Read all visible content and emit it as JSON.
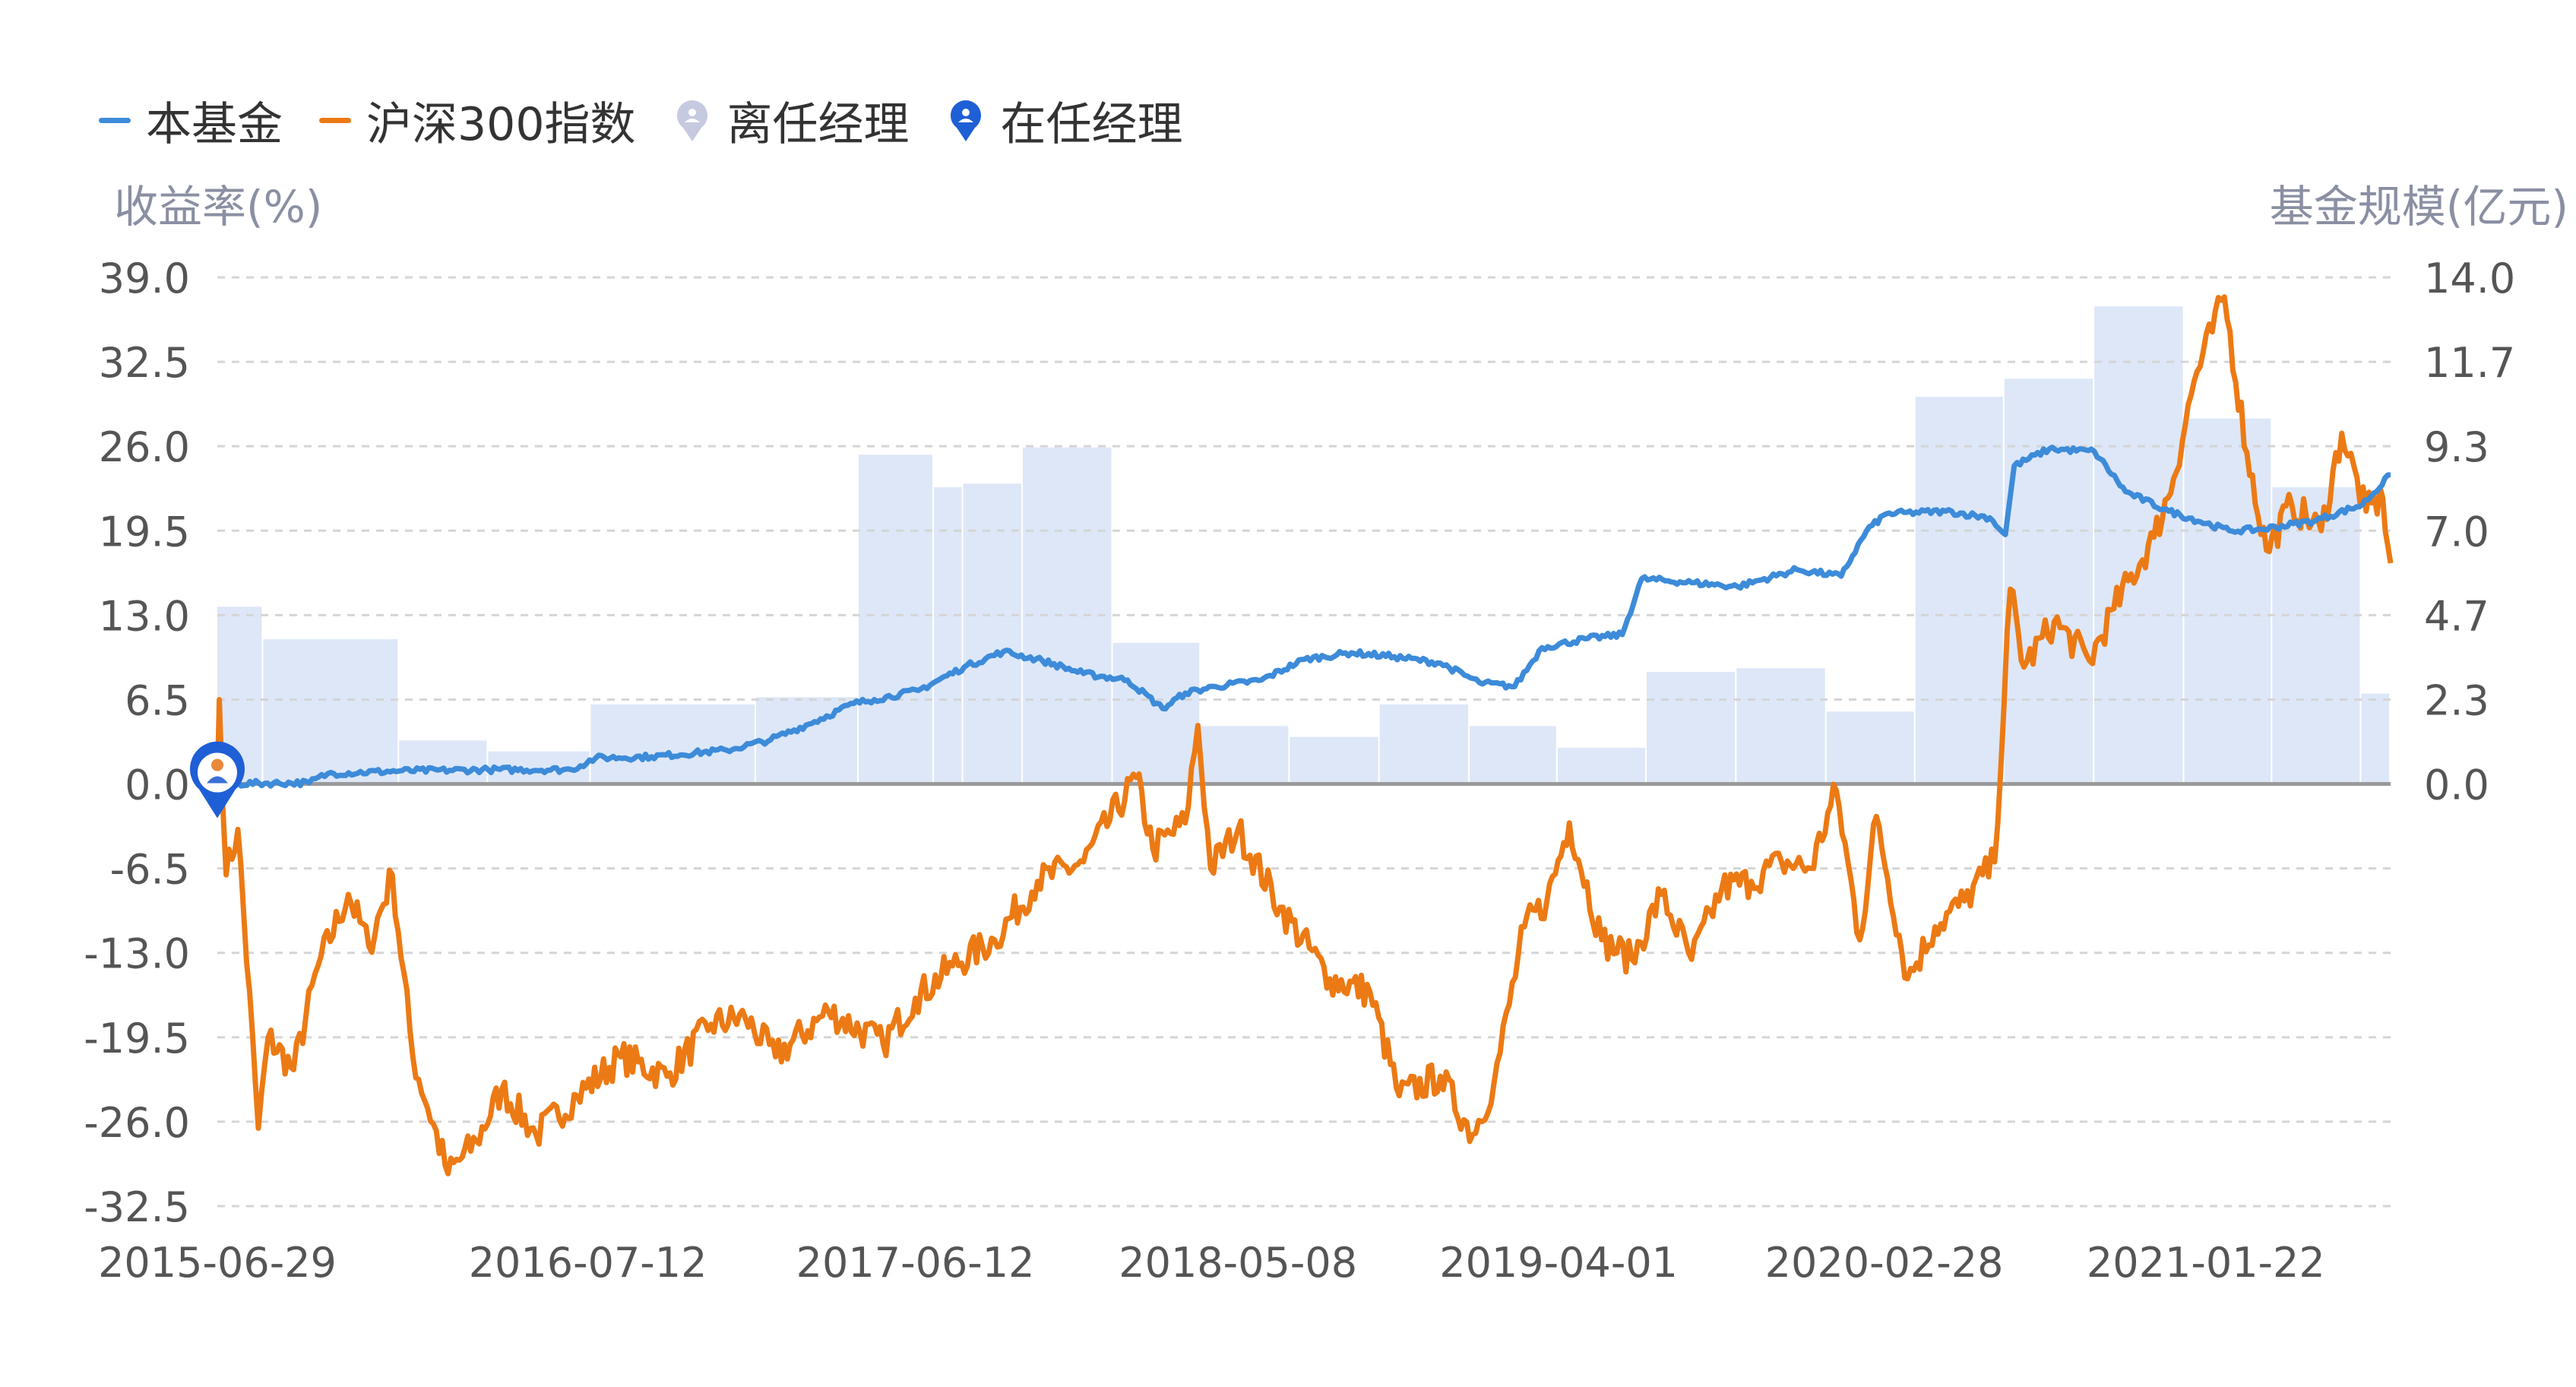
{
  "legend": {
    "fund": "本基金",
    "index": "沪深300指数",
    "former_manager": "离任经理",
    "current_manager": "在任经理"
  },
  "colors": {
    "fund": "#3d8bd9",
    "index": "#ec7a14",
    "scale_fill": "#dde7f8",
    "former_manager_icon": "#c5cae0",
    "current_manager_icon": "#1f5fd6",
    "grid": "#d5d5d5",
    "zero_line": "#9a9a9a",
    "axis_text": "#555555"
  },
  "chart_data": {
    "type": "line",
    "left_axis_title": "收益率(%)",
    "right_axis_title": "基金规模(亿元)",
    "left_ticks": [
      "39.0",
      "32.5",
      "26.0",
      "19.5",
      "13.0",
      "6.5",
      "0.0",
      "-6.5",
      "-13.0",
      "-19.5",
      "-26.0",
      "-32.5"
    ],
    "right_ticks": [
      "14.0",
      "11.7",
      "9.3",
      "7.0",
      "4.7",
      "2.3",
      "0.0"
    ],
    "x_ticks": [
      "2015-06-29",
      "2016-07-12",
      "2017-06-12",
      "2018-05-08",
      "2019-04-01",
      "2020-02-28",
      "2021-01-22"
    ],
    "x_range": [
      "2015-06-29",
      "2021-07-30"
    ],
    "y_left_range": [
      -32.5,
      39.0
    ],
    "y_right_range": [
      0,
      14.0
    ],
    "grid": true,
    "legend_position": "top-left",
    "series": [
      {
        "name": "本基金",
        "axis": "left",
        "points": [
          [
            "2015-06-29",
            0.0
          ],
          [
            "2015-10-01",
            0.1
          ],
          [
            "2015-10-20",
            0.8
          ],
          [
            "2016-01-01",
            1.0
          ],
          [
            "2016-04-01",
            1.1
          ],
          [
            "2016-06-25",
            1.1
          ],
          [
            "2016-07-20",
            2.0
          ],
          [
            "2016-09-15",
            2.1
          ],
          [
            "2016-12-01",
            2.6
          ],
          [
            "2017-01-15",
            3.4
          ],
          [
            "2017-03-01",
            4.8
          ],
          [
            "2017-04-10",
            6.2
          ],
          [
            "2017-05-01",
            6.5
          ],
          [
            "2017-06-15",
            7.2
          ],
          [
            "2017-08-01",
            9.0
          ],
          [
            "2017-09-10",
            10.2
          ],
          [
            "2017-10-20",
            9.5
          ],
          [
            "2017-12-01",
            8.5
          ],
          [
            "2018-01-15",
            8.0
          ],
          [
            "2018-02-20",
            5.8
          ],
          [
            "2018-03-15",
            7.0
          ],
          [
            "2018-04-15",
            7.5
          ],
          [
            "2018-06-01",
            8.0
          ],
          [
            "2018-07-15",
            9.6
          ],
          [
            "2018-09-01",
            10.1
          ],
          [
            "2018-10-15",
            9.8
          ],
          [
            "2018-12-01",
            9.3
          ],
          [
            "2019-01-10",
            7.8
          ],
          [
            "2019-02-15",
            7.5
          ],
          [
            "2019-03-15",
            10.5
          ],
          [
            "2019-05-01",
            11.2
          ],
          [
            "2019-06-05",
            11.5
          ],
          [
            "2019-06-25",
            15.8
          ],
          [
            "2019-08-15",
            15.5
          ],
          [
            "2019-10-01",
            15.2
          ],
          [
            "2019-12-01",
            16.5
          ],
          [
            "2020-01-15",
            16.0
          ],
          [
            "2020-02-10",
            19.5
          ],
          [
            "2020-03-01",
            20.8
          ],
          [
            "2020-05-01",
            21.0
          ],
          [
            "2020-06-15",
            20.5
          ],
          [
            "2020-07-01",
            19.2
          ],
          [
            "2020-07-10",
            24.5
          ],
          [
            "2020-08-15",
            25.8
          ],
          [
            "2020-09-30",
            25.6
          ],
          [
            "2020-11-01",
            22.5
          ],
          [
            "2020-12-15",
            21.0
          ],
          [
            "2021-02-15",
            19.5
          ],
          [
            "2021-03-20",
            19.6
          ],
          [
            "2021-05-15",
            20.3
          ],
          [
            "2021-07-01",
            21.5
          ],
          [
            "2021-07-30",
            23.8
          ]
        ]
      },
      {
        "name": "沪深300指数",
        "axis": "left",
        "points": [
          [
            "2015-06-29",
            0.0
          ],
          [
            "2015-07-01",
            6.5
          ],
          [
            "2015-07-08",
            -7.0
          ],
          [
            "2015-07-20",
            -3.5
          ],
          [
            "2015-08-10",
            -26.5
          ],
          [
            "2015-08-20",
            -19.5
          ],
          [
            "2015-09-15",
            -22.0
          ],
          [
            "2015-10-10",
            -14.0
          ],
          [
            "2015-11-10",
            -8.5
          ],
          [
            "2015-12-01",
            -12.5
          ],
          [
            "2015-12-25",
            -7.0
          ],
          [
            "2016-01-15",
            -21.0
          ],
          [
            "2016-02-20",
            -30.0
          ],
          [
            "2016-03-20",
            -27.5
          ],
          [
            "2016-04-15",
            -23.5
          ],
          [
            "2016-05-20",
            -27.0
          ],
          [
            "2016-07-01",
            -24.0
          ],
          [
            "2016-08-15",
            -21.0
          ],
          [
            "2016-10-01",
            -22.5
          ],
          [
            "2016-11-15",
            -18.5
          ],
          [
            "2016-12-20",
            -18.0
          ],
          [
            "2017-01-20",
            -21.0
          ],
          [
            "2017-03-15",
            -17.5
          ],
          [
            "2017-05-10",
            -20.0
          ],
          [
            "2017-06-12",
            -16.5
          ],
          [
            "2017-07-20",
            -14.0
          ],
          [
            "2017-09-01",
            -12.0
          ],
          [
            "2017-10-15",
            -7.5
          ],
          [
            "2017-12-01",
            -6.0
          ],
          [
            "2018-01-24",
            0.5
          ],
          [
            "2018-02-10",
            -5.0
          ],
          [
            "2018-03-15",
            -3.0
          ],
          [
            "2018-03-28",
            4.5
          ],
          [
            "2018-04-10",
            -6.5
          ],
          [
            "2018-05-08",
            -3.5
          ],
          [
            "2018-06-20",
            -9.5
          ],
          [
            "2018-08-10",
            -15.0
          ],
          [
            "2018-09-20",
            -16.0
          ],
          [
            "2018-10-20",
            -24.0
          ],
          [
            "2018-12-01",
            -22.5
          ],
          [
            "2019-01-03",
            -27.0
          ],
          [
            "2019-01-25",
            -23.0
          ],
          [
            "2019-02-25",
            -11.0
          ],
          [
            "2019-03-20",
            -9.0
          ],
          [
            "2019-04-12",
            -3.0
          ],
          [
            "2019-05-15",
            -12.0
          ],
          [
            "2019-06-15",
            -13.5
          ],
          [
            "2019-07-15",
            -8.5
          ],
          [
            "2019-08-15",
            -13.5
          ],
          [
            "2019-09-15",
            -8.0
          ],
          [
            "2019-10-15",
            -7.5
          ],
          [
            "2019-11-15",
            -6.0
          ],
          [
            "2019-12-15",
            -6.5
          ],
          [
            "2020-01-10",
            -0.5
          ],
          [
            "2020-02-03",
            -12.0
          ],
          [
            "2020-02-20",
            -2.5
          ],
          [
            "2020-03-23",
            -15.0
          ],
          [
            "2020-04-20",
            -11.0
          ],
          [
            "2020-05-20",
            -9.0
          ],
          [
            "2020-06-20",
            -6.0
          ],
          [
            "2020-07-06",
            15.0
          ],
          [
            "2020-07-20",
            9.0
          ],
          [
            "2020-08-20",
            12.5
          ],
          [
            "2020-09-25",
            9.5
          ],
          [
            "2020-10-20",
            13.5
          ],
          [
            "2020-11-30",
            19.0
          ],
          [
            "2020-12-20",
            23.5
          ],
          [
            "2021-01-10",
            31.0
          ],
          [
            "2021-02-10",
            37.5
          ],
          [
            "2021-03-05",
            25.5
          ],
          [
            "2021-03-25",
            18.0
          ],
          [
            "2021-04-20",
            21.5
          ],
          [
            "2021-05-20",
            19.5
          ],
          [
            "2021-06-10",
            27.0
          ],
          [
            "2021-07-05",
            21.0
          ],
          [
            "2021-07-22",
            22.0
          ],
          [
            "2021-07-30",
            17.0
          ]
        ]
      }
    ],
    "scale_bars": {
      "name": "基金规模",
      "axis": "right",
      "bars": [
        {
          "start": "2015-06-29",
          "end": "2015-08-15",
          "value": 4.9
        },
        {
          "start": "2015-08-15",
          "end": "2016-01-01",
          "value": 4.0
        },
        {
          "start": "2016-01-01",
          "end": "2016-04-01",
          "value": 1.2
        },
        {
          "start": "2016-04-01",
          "end": "2016-07-15",
          "value": 0.9
        },
        {
          "start": "2016-07-15",
          "end": "2016-12-31",
          "value": 2.2
        },
        {
          "start": "2016-12-31",
          "end": "2017-04-15",
          "value": 2.4
        },
        {
          "start": "2017-04-15",
          "end": "2017-07-01",
          "value": 9.1
        },
        {
          "start": "2017-07-01",
          "end": "2017-07-31",
          "value": 8.2
        },
        {
          "start": "2017-07-31",
          "end": "2017-09-30",
          "value": 8.3
        },
        {
          "start": "2017-09-30",
          "end": "2017-12-31",
          "value": 9.3
        },
        {
          "start": "2017-12-31",
          "end": "2018-03-31",
          "value": 3.9
        },
        {
          "start": "2018-03-31",
          "end": "2018-06-30",
          "value": 1.6
        },
        {
          "start": "2018-06-30",
          "end": "2018-09-30",
          "value": 1.3
        },
        {
          "start": "2018-09-30",
          "end": "2018-12-31",
          "value": 2.2
        },
        {
          "start": "2018-12-31",
          "end": "2019-03-31",
          "value": 1.6
        },
        {
          "start": "2019-03-31",
          "end": "2019-06-30",
          "value": 1.0
        },
        {
          "start": "2019-06-30",
          "end": "2019-09-30",
          "value": 3.1
        },
        {
          "start": "2019-09-30",
          "end": "2019-12-31",
          "value": 3.2
        },
        {
          "start": "2019-12-31",
          "end": "2020-03-31",
          "value": 2.0
        },
        {
          "start": "2020-03-31",
          "end": "2020-06-30",
          "value": 10.7
        },
        {
          "start": "2020-06-30",
          "end": "2020-09-30",
          "value": 11.2
        },
        {
          "start": "2020-09-30",
          "end": "2020-12-31",
          "value": 13.2
        },
        {
          "start": "2020-12-31",
          "end": "2021-03-31",
          "value": 10.1
        },
        {
          "start": "2021-03-31",
          "end": "2021-06-30",
          "value": 8.2
        },
        {
          "start": "2021-06-30",
          "end": "2021-07-30",
          "value": 2.5
        }
      ]
    },
    "manager_markers": [
      {
        "type": "current",
        "date": "2015-06-29",
        "value": 0.0
      }
    ]
  }
}
